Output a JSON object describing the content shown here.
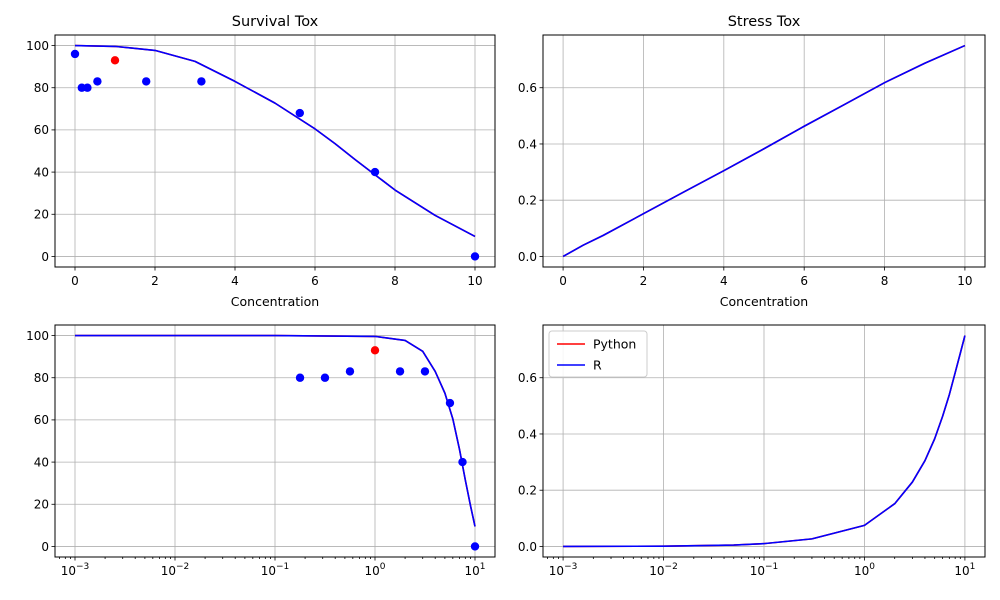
{
  "colors": {
    "python": "#ff0000",
    "r": "#0000ff",
    "observed": "#0000ff",
    "control": "#ff0000",
    "grid": "#b0b0b0"
  },
  "chart_data": [
    {
      "id": "survival_linear",
      "type": "scatter",
      "title": "Survival Tox",
      "xlabel": "Concentration",
      "ylabel": "",
      "xscale": "linear",
      "xlim": [
        -0.5,
        10.5
      ],
      "ylim": [
        -5,
        105
      ],
      "xticks": [
        0,
        2,
        4,
        6,
        8,
        10
      ],
      "xtick_labels": [
        "0",
        "2",
        "4",
        "6",
        "8",
        "10"
      ],
      "yticks": [
        0,
        20,
        40,
        60,
        80,
        100
      ],
      "ytick_labels": [
        "0",
        "20",
        "40",
        "60",
        "80",
        "100"
      ],
      "grid": true,
      "points": [
        {
          "x": 0,
          "y": 96,
          "color": "blue"
        },
        {
          "x": 0.17,
          "y": 80,
          "color": "blue"
        },
        {
          "x": 0.31,
          "y": 80,
          "color": "blue"
        },
        {
          "x": 0.56,
          "y": 83,
          "color": "blue"
        },
        {
          "x": 1.0,
          "y": 93,
          "color": "red"
        },
        {
          "x": 1.78,
          "y": 83,
          "color": "blue"
        },
        {
          "x": 3.16,
          "y": 83,
          "color": "blue"
        },
        {
          "x": 5.62,
          "y": 68,
          "color": "blue"
        },
        {
          "x": 7.5,
          "y": 40,
          "color": "blue"
        },
        {
          "x": 10,
          "y": 0,
          "color": "blue"
        }
      ],
      "series": [
        {
          "name": "Python",
          "x": [
            0,
            1,
            2,
            3,
            4,
            5,
            6,
            6.5,
            7,
            8,
            9,
            10
          ],
          "y": [
            100,
            99.6,
            97.7,
            92.5,
            83,
            72.7,
            60.5,
            53.5,
            46,
            31.5,
            19.5,
            9.5
          ]
        },
        {
          "name": "R",
          "x": [
            0,
            1,
            2,
            3,
            4,
            5,
            6,
            6.5,
            7,
            8,
            9,
            10
          ],
          "y": [
            100,
            99.6,
            97.7,
            92.5,
            83,
            72.7,
            60.5,
            53.5,
            46,
            31.5,
            19.5,
            9.5
          ]
        }
      ]
    },
    {
      "id": "stress_linear",
      "type": "line",
      "title": "Stress Tox",
      "xlabel": "Concentration",
      "ylabel": "",
      "xscale": "linear",
      "xlim": [
        -0.5,
        10.5
      ],
      "ylim": [
        -0.0375,
        0.7875
      ],
      "xticks": [
        0,
        2,
        4,
        6,
        8,
        10
      ],
      "xtick_labels": [
        "0",
        "2",
        "4",
        "6",
        "8",
        "10"
      ],
      "yticks": [
        0,
        0.2,
        0.4,
        0.6
      ],
      "ytick_labels": [
        "0.0",
        "0.2",
        "0.4",
        "0.6"
      ],
      "grid": true,
      "points": [],
      "series": [
        {
          "name": "Python",
          "x": [
            0,
            0.5,
            1,
            2,
            3,
            4,
            5,
            6,
            7,
            8,
            9,
            10
          ],
          "y": [
            0,
            0.04,
            0.075,
            0.152,
            0.229,
            0.305,
            0.383,
            0.463,
            0.54,
            0.618,
            0.687,
            0.75
          ]
        },
        {
          "name": "R",
          "x": [
            0,
            0.5,
            1,
            2,
            3,
            4,
            5,
            6,
            7,
            8,
            9,
            10
          ],
          "y": [
            0,
            0.04,
            0.075,
            0.152,
            0.229,
            0.305,
            0.383,
            0.463,
            0.54,
            0.618,
            0.687,
            0.75
          ]
        }
      ]
    },
    {
      "id": "survival_log",
      "type": "scatter",
      "title": "",
      "xlabel": "",
      "ylabel": "",
      "xscale": "log",
      "xlim": [
        0.000631,
        15.85
      ],
      "ylim": [
        -5,
        105
      ],
      "xticks": [
        0.001,
        0.01,
        0.1,
        1,
        10
      ],
      "xtick_labels": [
        "10",
        "10",
        "10",
        "10",
        "10"
      ],
      "xtick_exponents": [
        "−3",
        "−2",
        "−1",
        "0",
        "1"
      ],
      "yticks": [
        0,
        20,
        40,
        60,
        80,
        100
      ],
      "ytick_labels": [
        "0",
        "20",
        "40",
        "60",
        "80",
        "100"
      ],
      "grid": true,
      "points": [
        {
          "x": 0.178,
          "y": 80,
          "color": "blue"
        },
        {
          "x": 0.316,
          "y": 80,
          "color": "blue"
        },
        {
          "x": 0.562,
          "y": 83,
          "color": "blue"
        },
        {
          "x": 1.0,
          "y": 93,
          "color": "red"
        },
        {
          "x": 1.78,
          "y": 83,
          "color": "blue"
        },
        {
          "x": 3.16,
          "y": 83,
          "color": "blue"
        },
        {
          "x": 5.62,
          "y": 68,
          "color": "blue"
        },
        {
          "x": 7.5,
          "y": 40,
          "color": "blue"
        },
        {
          "x": 10,
          "y": 0,
          "color": "blue"
        }
      ],
      "series": [
        {
          "name": "Python",
          "x": [
            0.001,
            0.01,
            0.1,
            1,
            2,
            3,
            4,
            5,
            6,
            7,
            8,
            9,
            10
          ],
          "y": [
            100,
            100,
            100,
            99.6,
            97.7,
            92.5,
            83,
            72.7,
            60.5,
            46,
            31.5,
            19.5,
            9.5
          ]
        },
        {
          "name": "R",
          "x": [
            0.001,
            0.01,
            0.1,
            1,
            2,
            3,
            4,
            5,
            6,
            7,
            8,
            9,
            10
          ],
          "y": [
            100,
            100,
            100,
            99.6,
            97.7,
            92.5,
            83,
            72.7,
            60.5,
            46,
            31.5,
            19.5,
            9.5
          ]
        }
      ]
    },
    {
      "id": "stress_log",
      "type": "line",
      "title": "",
      "xlabel": "",
      "ylabel": "",
      "xscale": "log",
      "xlim": [
        0.000631,
        15.85
      ],
      "ylim": [
        -0.0375,
        0.7875
      ],
      "xticks": [
        0.001,
        0.01,
        0.1,
        1,
        10
      ],
      "xtick_labels": [
        "10",
        "10",
        "10",
        "10",
        "10"
      ],
      "xtick_exponents": [
        "−3",
        "−2",
        "−1",
        "0",
        "1"
      ],
      "yticks": [
        0,
        0.2,
        0.4,
        0.6
      ],
      "ytick_labels": [
        "0.0",
        "0.2",
        "0.4",
        "0.6"
      ],
      "grid": true,
      "legend": {
        "location": "upper-left",
        "entries": [
          "Python",
          "R"
        ]
      },
      "points": [],
      "series": [
        {
          "name": "Python",
          "x": [
            0.001,
            0.01,
            0.05,
            0.1,
            0.3,
            1,
            2,
            3,
            4,
            5,
            6,
            7,
            8,
            9,
            10
          ],
          "y": [
            0,
            0.001,
            0.005,
            0.01,
            0.027,
            0.075,
            0.152,
            0.229,
            0.305,
            0.383,
            0.463,
            0.54,
            0.618,
            0.687,
            0.75
          ]
        },
        {
          "name": "R",
          "x": [
            0.001,
            0.01,
            0.05,
            0.1,
            0.3,
            1,
            2,
            3,
            4,
            5,
            6,
            7,
            8,
            9,
            10
          ],
          "y": [
            0,
            0.001,
            0.005,
            0.01,
            0.027,
            0.075,
            0.152,
            0.229,
            0.305,
            0.383,
            0.463,
            0.54,
            0.618,
            0.687,
            0.75
          ]
        }
      ]
    }
  ]
}
